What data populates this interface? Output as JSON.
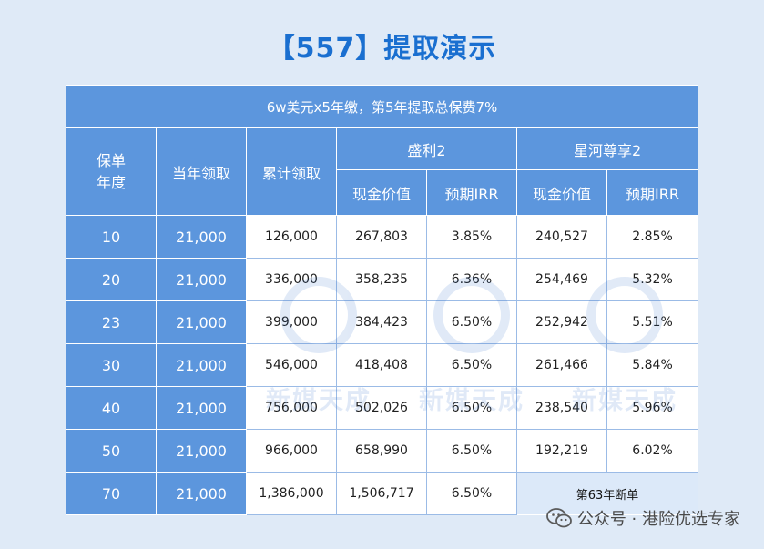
{
  "title": "【557】提取演示",
  "banner": "6w美元x5年缴，第5年提取总保费7%",
  "headers": {
    "policy_year": "保单\n年度",
    "annual_withdrawal": "当年领取",
    "cumulative_withdrawal": "累计领取",
    "product_a": "盛利2",
    "product_b": "星河尊享2",
    "cash_value": "现金价值",
    "irr": "预期IRR"
  },
  "rows": [
    {
      "year": "10",
      "annual": "21,000",
      "cumulative": "126,000",
      "a_cash": "267,803",
      "a_irr": "3.85%",
      "b_cash": "240,527",
      "b_irr": "2.85%"
    },
    {
      "year": "20",
      "annual": "21,000",
      "cumulative": "336,000",
      "a_cash": "358,235",
      "a_irr": "6.36%",
      "b_cash": "254,469",
      "b_irr": "5.32%"
    },
    {
      "year": "23",
      "annual": "21,000",
      "cumulative": "399,000",
      "a_cash": "384,423",
      "a_irr": "6.50%",
      "b_cash": "252,942",
      "b_irr": "5.51%"
    },
    {
      "year": "30",
      "annual": "21,000",
      "cumulative": "546,000",
      "a_cash": "418,408",
      "a_irr": "6.50%",
      "b_cash": "261,466",
      "b_irr": "5.84%"
    },
    {
      "year": "40",
      "annual": "21,000",
      "cumulative": "756,000",
      "a_cash": "502,026",
      "a_irr": "6.50%",
      "b_cash": "238,540",
      "b_irr": "5.96%"
    },
    {
      "year": "50",
      "annual": "21,000",
      "cumulative": "966,000",
      "a_cash": "658,990",
      "a_irr": "6.50%",
      "b_cash": "192,219",
      "b_irr": "6.02%"
    }
  ],
  "last_row": {
    "year": "70",
    "annual": "21,000",
    "cumulative": "1,386,000",
    "a_cash": "1,506,717",
    "a_irr": "6.50%",
    "b_note": "第63年断单"
  },
  "watermark": "新媒天成",
  "footer": "公众号 · 港险优选专家",
  "colors": {
    "header_blue": "#5c96dd",
    "title_blue": "#1a6fd0",
    "background": "#dfeaf7"
  }
}
